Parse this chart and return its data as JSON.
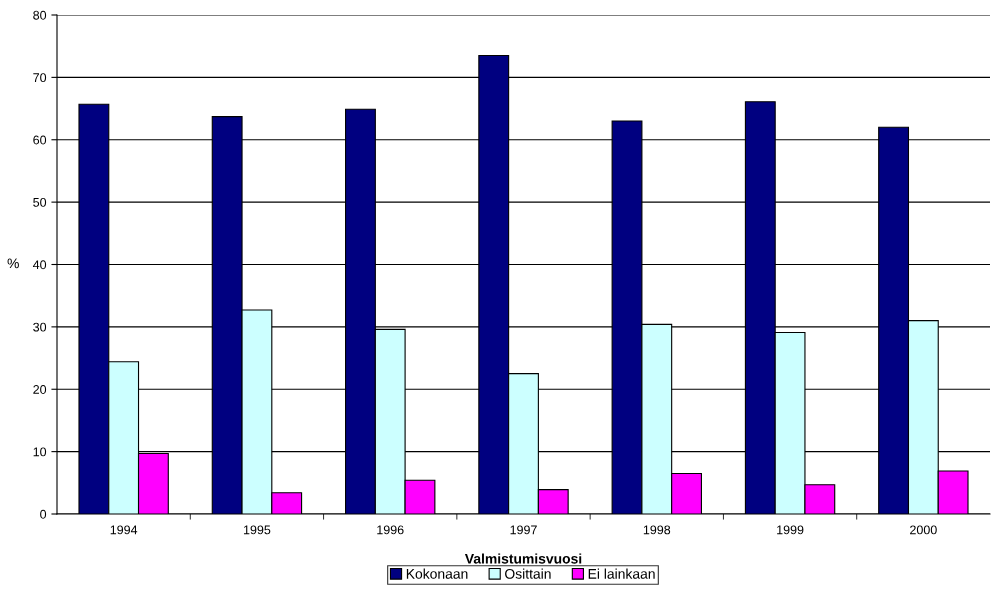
{
  "chart_data": {
    "type": "bar",
    "xlabel": "Valmistumisvuosi",
    "ylabel": "%",
    "categories": [
      "1994",
      "1995",
      "1996",
      "1997",
      "1998",
      "1999",
      "2000"
    ],
    "series": [
      {
        "name": "Kokonaan",
        "color": "#000080",
        "values": [
          65.7,
          63.7,
          64.9,
          73.5,
          63.0,
          66.1,
          62.0
        ]
      },
      {
        "name": "Osittain",
        "color": "#ccffff",
        "values": [
          24.4,
          32.7,
          29.6,
          22.5,
          30.4,
          29.1,
          31.0
        ]
      },
      {
        "name": "Ei lainkaan",
        "color": "#ff00ff",
        "values": [
          9.7,
          3.4,
          5.4,
          3.9,
          6.5,
          4.7,
          6.9
        ]
      }
    ],
    "ylim": [
      0,
      80
    ],
    "yticks": [
      0,
      10,
      20,
      30,
      40,
      50,
      60,
      70,
      80
    ],
    "grid": "y",
    "legend": "bottom"
  }
}
